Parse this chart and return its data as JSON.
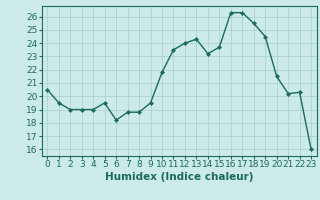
{
  "x": [
    0,
    1,
    2,
    3,
    4,
    5,
    6,
    7,
    8,
    9,
    10,
    11,
    12,
    13,
    14,
    15,
    16,
    17,
    18,
    19,
    20,
    21,
    22,
    23
  ],
  "y": [
    20.5,
    19.5,
    19.0,
    19.0,
    19.0,
    19.5,
    18.2,
    18.8,
    18.8,
    19.5,
    21.8,
    23.5,
    24.0,
    24.3,
    23.2,
    23.7,
    26.3,
    26.3,
    25.5,
    24.5,
    21.5,
    20.2,
    20.3,
    16.0
  ],
  "line_color": "#1a6b5a",
  "marker": "D",
  "marker_size": 2.0,
  "bg_color": "#cceaea",
  "grid_color": "#aacccc",
  "xlabel": "Humidex (Indice chaleur)",
  "ylim": [
    15.5,
    26.8
  ],
  "xlim": [
    -0.5,
    23.5
  ],
  "yticks": [
    16,
    17,
    18,
    19,
    20,
    21,
    22,
    23,
    24,
    25,
    26
  ],
  "xticks": [
    0,
    1,
    2,
    3,
    4,
    5,
    6,
    7,
    8,
    9,
    10,
    11,
    12,
    13,
    14,
    15,
    16,
    17,
    18,
    19,
    20,
    21,
    22,
    23
  ],
  "tick_fontsize": 6.5,
  "xlabel_fontsize": 7.5,
  "linewidth": 1.0
}
